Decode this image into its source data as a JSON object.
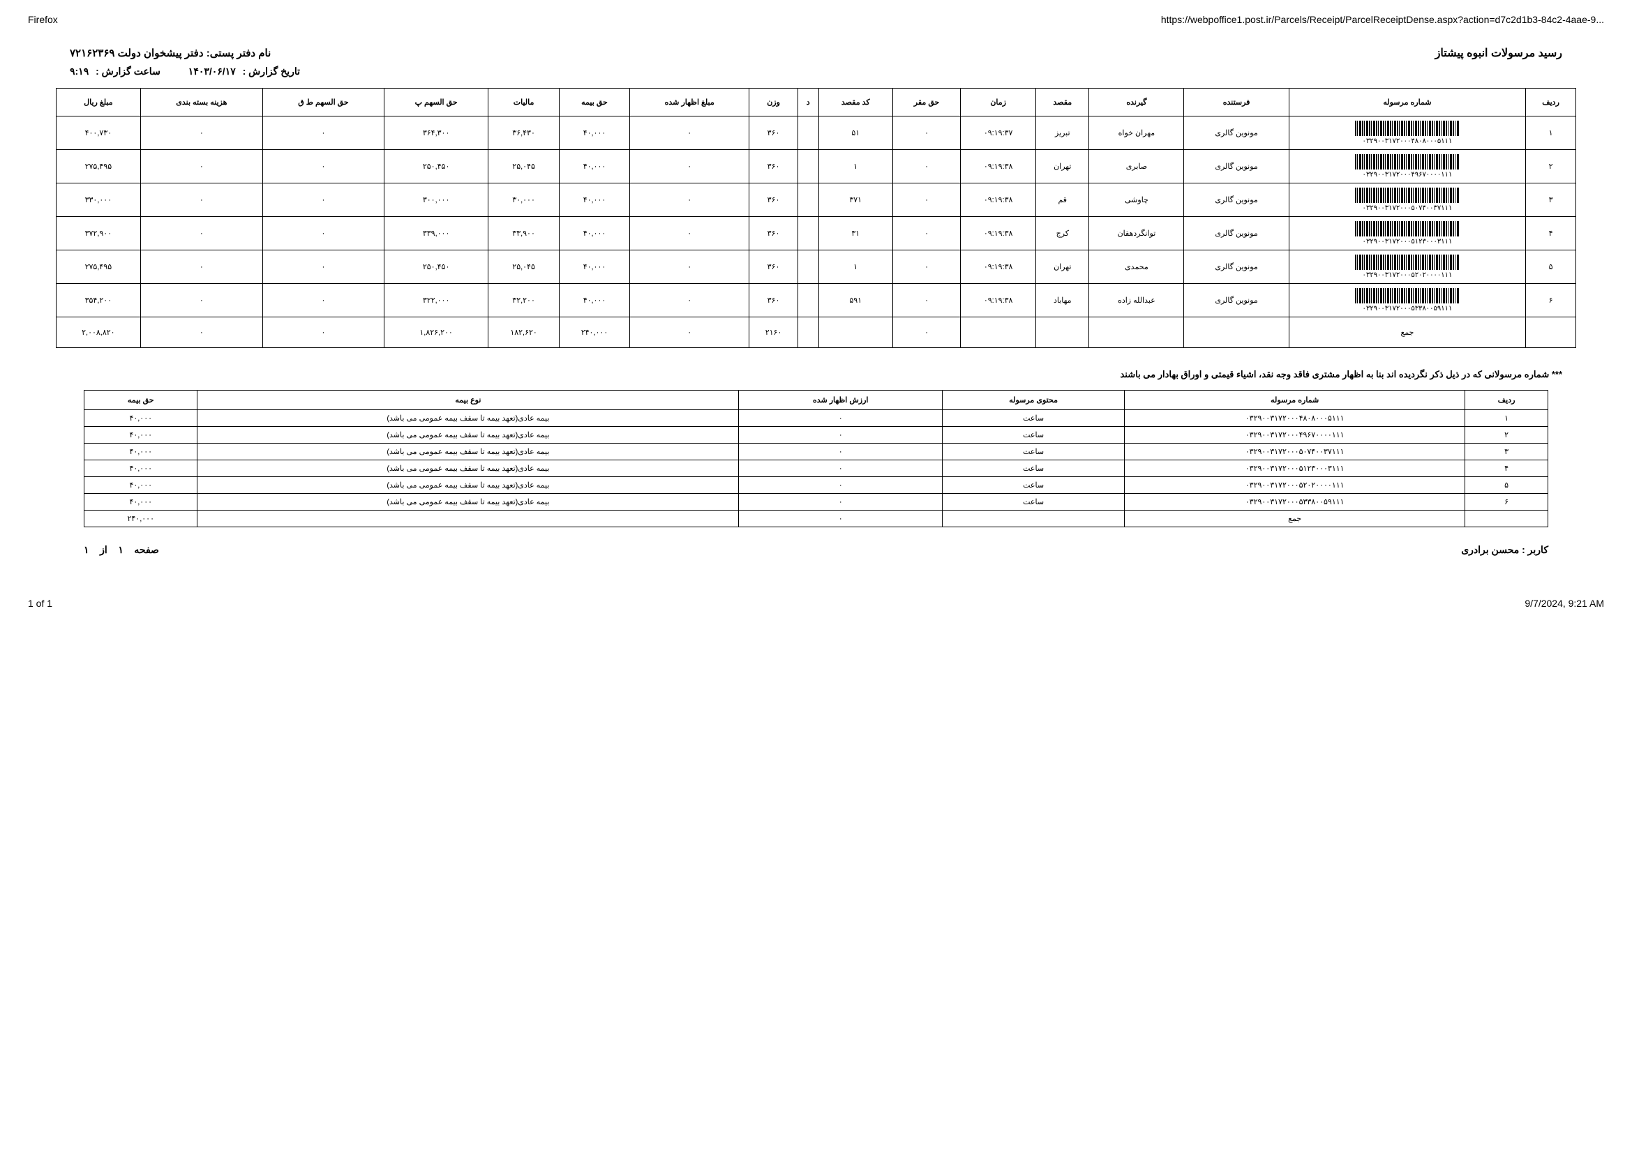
{
  "browser": {
    "name": "Firefox",
    "url": "https://webpoffice1.post.ir/Parcels/Receipt/ParcelReceiptDense.aspx?action=d7c2d1b3-84c2-4aae-9..."
  },
  "header": {
    "title": "رسید مرسولات انبوه  پیشتاز",
    "office_label": "نام دفتر پستی:",
    "office_value": "دفتر پیشخوان دولت ۷۲۱۶۲۳۶۹",
    "date_label": "تاریخ گزارش :",
    "date_value": "۱۴۰۳/۰۶/۱۷",
    "time_label": "ساعت گزارش :",
    "time_value": "۹:۱۹"
  },
  "main_table": {
    "columns": [
      "ردیف",
      "شماره مرسوله",
      "فرستنده",
      "گیرنده",
      "مقصد",
      "زمان",
      "حق مقر",
      "کد مقصد",
      "د",
      "وزن",
      "مبلغ اظهار شده",
      "حق بیمه",
      "مالیات",
      "حق السهم پ",
      "حق السهم ط ق",
      "هزینه بسته بندی",
      "مبلغ ریال"
    ],
    "rows": [
      {
        "idx": "۱",
        "barcode": "۰۳۲۹۰۰۳۱۷۲۰۰۰۴۸۰۸۰۰۰۵۱۱۱",
        "sender": "مونوین گالری",
        "receiver": "مهران خواه",
        "dest": "تبریز",
        "time": "۰۹:۱۹:۳۷",
        "haqm": "۰",
        "code": "۵۱",
        "d": "",
        "weight": "۳۶۰",
        "declared": "۰",
        "ins": "۴۰,۰۰۰",
        "tax": "۳۶,۴۳۰",
        "hp": "۳۶۴,۳۰۰",
        "hq": "۰",
        "pack": "۰",
        "total": "۴۰۰,۷۳۰"
      },
      {
        "idx": "۲",
        "barcode": "۰۳۲۹۰۰۳۱۷۲۰۰۰۴۹۶۷۰۰۰۰۱۱۱",
        "sender": "مونوین گالری",
        "receiver": "صابری",
        "dest": "تهران",
        "time": "۰۹:۱۹:۳۸",
        "haqm": "۰",
        "code": "۱",
        "d": "",
        "weight": "۳۶۰",
        "declared": "۰",
        "ins": "۴۰,۰۰۰",
        "tax": "۲۵,۰۴۵",
        "hp": "۲۵۰,۴۵۰",
        "hq": "۰",
        "pack": "۰",
        "total": "۲۷۵,۴۹۵"
      },
      {
        "idx": "۳",
        "barcode": "۰۳۲۹۰۰۳۱۷۲۰۰۰۵۰۷۴۰۰۳۷۱۱۱",
        "sender": "مونوین گالری",
        "receiver": "چاوشی",
        "dest": "قم",
        "time": "۰۹:۱۹:۳۸",
        "haqm": "۰",
        "code": "۳۷۱",
        "d": "",
        "weight": "۳۶۰",
        "declared": "۰",
        "ins": "۴۰,۰۰۰",
        "tax": "۳۰,۰۰۰",
        "hp": "۳۰۰,۰۰۰",
        "hq": "۰",
        "pack": "۰",
        "total": "۳۳۰,۰۰۰"
      },
      {
        "idx": "۴",
        "barcode": "۰۳۲۹۰۰۳۱۷۲۰۰۰۵۱۲۳۰۰۰۳۱۱۱",
        "sender": "مونوین گالری",
        "receiver": "توانگردهقان",
        "dest": "کرج",
        "time": "۰۹:۱۹:۳۸",
        "haqm": "۰",
        "code": "۳۱",
        "d": "",
        "weight": "۳۶۰",
        "declared": "۰",
        "ins": "۴۰,۰۰۰",
        "tax": "۳۳,۹۰۰",
        "hp": "۳۳۹,۰۰۰",
        "hq": "۰",
        "pack": "۰",
        "total": "۳۷۲,۹۰۰"
      },
      {
        "idx": "۵",
        "barcode": "۰۳۲۹۰۰۳۱۷۲۰۰۰۵۲۰۲۰۰۰۰۱۱۱",
        "sender": "مونوین گالری",
        "receiver": "محمدی",
        "dest": "تهران",
        "time": "۰۹:۱۹:۳۸",
        "haqm": "۰",
        "code": "۱",
        "d": "",
        "weight": "۳۶۰",
        "declared": "۰",
        "ins": "۴۰,۰۰۰",
        "tax": "۲۵,۰۴۵",
        "hp": "۲۵۰,۴۵۰",
        "hq": "۰",
        "pack": "۰",
        "total": "۲۷۵,۴۹۵"
      },
      {
        "idx": "۶",
        "barcode": "۰۳۲۹۰۰۳۱۷۲۰۰۰۵۳۳۸۰۰۵۹۱۱۱",
        "sender": "مونوین گالری",
        "receiver": "عبدالله زاده",
        "dest": "مهاباد",
        "time": "۰۹:۱۹:۳۸",
        "haqm": "۰",
        "code": "۵۹۱",
        "d": "",
        "weight": "۳۶۰",
        "declared": "۰",
        "ins": "۴۰,۰۰۰",
        "tax": "۳۲,۲۰۰",
        "hp": "۳۲۲,۰۰۰",
        "hq": "۰",
        "pack": "۰",
        "total": "۳۵۴,۲۰۰"
      }
    ],
    "sum_label": "جمع",
    "sum": {
      "weight": "۲۱۶۰",
      "declared": "۰",
      "ins": "۲۴۰,۰۰۰",
      "tax": "۱۸۲,۶۲۰",
      "hp": "۱,۸۲۶,۲۰۰",
      "hq": "۰",
      "pack": "۰",
      "total": "۲,۰۰۸,۸۲۰",
      "haqm": "۰"
    }
  },
  "note": "*** شماره مرسولانی که در ذیل ذکر نگردیده اند بنا به اظهار مشتری فاقد وجه نقد، اشیاء قیمتی و اوراق بهادار می باشند",
  "sub_table": {
    "columns": [
      "ردیف",
      "شماره مرسوله",
      "محتوی مرسوله",
      "ارزش اظهار شده",
      "نوع بیمه",
      "حق بیمه"
    ],
    "rows": [
      {
        "idx": "۱",
        "code": "۰۳۲۹۰۰۳۱۷۲۰۰۰۴۸۰۸۰۰۰۵۱۱۱",
        "content": "ساعت",
        "val": "۰",
        "type": "بیمه عادی(تعهد بیمه تا سقف بیمه عمومی می باشد)",
        "ins": "۴۰,۰۰۰"
      },
      {
        "idx": "۲",
        "code": "۰۳۲۹۰۰۳۱۷۲۰۰۰۴۹۶۷۰۰۰۰۱۱۱",
        "content": "ساعت",
        "val": "۰",
        "type": "بیمه عادی(تعهد بیمه تا سقف بیمه عمومی می باشد)",
        "ins": "۴۰,۰۰۰"
      },
      {
        "idx": "۳",
        "code": "۰۳۲۹۰۰۳۱۷۲۰۰۰۵۰۷۴۰۰۳۷۱۱۱",
        "content": "ساعت",
        "val": "۰",
        "type": "بیمه عادی(تعهد بیمه تا سقف بیمه عمومی می باشد)",
        "ins": "۴۰,۰۰۰"
      },
      {
        "idx": "۴",
        "code": "۰۳۲۹۰۰۳۱۷۲۰۰۰۵۱۲۳۰۰۰۳۱۱۱",
        "content": "ساعت",
        "val": "۰",
        "type": "بیمه عادی(تعهد بیمه تا سقف بیمه عمومی می باشد)",
        "ins": "۴۰,۰۰۰"
      },
      {
        "idx": "۵",
        "code": "۰۳۲۹۰۰۳۱۷۲۰۰۰۵۲۰۲۰۰۰۰۱۱۱",
        "content": "ساعت",
        "val": "۰",
        "type": "بیمه عادی(تعهد بیمه تا سقف بیمه عمومی می باشد)",
        "ins": "۴۰,۰۰۰"
      },
      {
        "idx": "۶",
        "code": "۰۳۲۹۰۰۳۱۷۲۰۰۰۵۳۳۸۰۰۵۹۱۱۱",
        "content": "ساعت",
        "val": "۰",
        "type": "بیمه عادی(تعهد بیمه تا سقف بیمه عمومی می باشد)",
        "ins": "۴۰,۰۰۰"
      }
    ],
    "sum_label": "جمع",
    "sum": {
      "val": "۰",
      "ins": "۲۴۰,۰۰۰"
    }
  },
  "footer": {
    "user_label": "کاربر :",
    "user_value": "محسن برادری",
    "page_label": "صفحه",
    "page_num": "۱",
    "of_label": "از",
    "page_total": "۱"
  },
  "page_footer": {
    "left": "1 of 1",
    "right": "9/7/2024, 9:21 AM"
  }
}
